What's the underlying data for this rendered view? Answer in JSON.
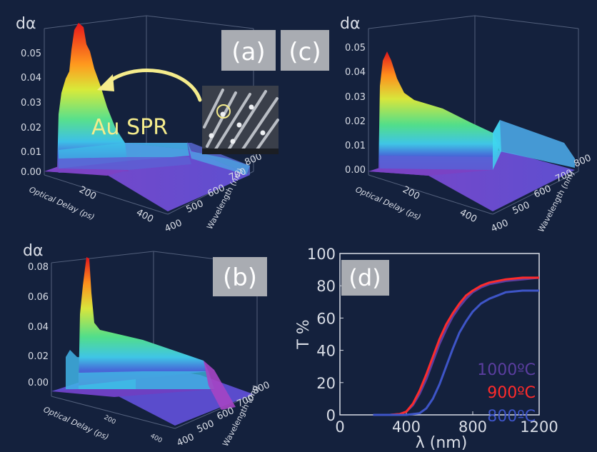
{
  "colors": {
    "background": "#14213d",
    "axis": "#d9dde6",
    "label_box": "#a9acb2",
    "callout": "#f5ec8c",
    "line_1000": "#5b3ea0",
    "line_900": "#ff2b2b",
    "line_800": "#3e55c8"
  },
  "panels": {
    "a": {
      "tag": "(a)",
      "z_label": "dα",
      "z_ticks": [
        "0.05",
        "0.04",
        "0.03",
        "0.02",
        "0.01",
        "0.00"
      ],
      "x_label": "Optical Delay (ps)",
      "x_ticks": [
        "200",
        "400"
      ],
      "y_label": "Wavelength (nm)",
      "y_ticks": [
        "400",
        "500",
        "600",
        "700",
        "800"
      ],
      "annotation": "Au SPR",
      "inset_icon": "sem-micrograph"
    },
    "c": {
      "tag": "(c)",
      "z_label": "dα",
      "z_ticks": [
        "0.05",
        "0.04",
        "0.03",
        "0.02",
        "0.01",
        "0.00"
      ],
      "x_label": "Optical Delay (ps)",
      "x_ticks": [
        "200",
        "400"
      ],
      "y_label": "Wavelength (nm)",
      "y_ticks": [
        "400",
        "500",
        "600",
        "700",
        "800"
      ]
    },
    "b": {
      "tag": "(b)",
      "z_label": "dα",
      "z_ticks": [
        "0.08",
        "0.06",
        "0.04",
        "0.02",
        "0.00"
      ],
      "x_label": "Optical Delay (ps)",
      "x_ticks": [
        "200",
        "400"
      ],
      "y_label": "Wavelength (nm)",
      "y_ticks": [
        "400",
        "500",
        "600",
        "700",
        "800"
      ]
    }
  },
  "chart_data": [
    {
      "panel": "d",
      "type": "line",
      "title": "(d)",
      "xlabel": "λ (nm)",
      "ylabel": "T %",
      "xlim": [
        0,
        1200
      ],
      "ylim": [
        0,
        100
      ],
      "x_ticks": [
        "0",
        "400",
        "800",
        "1200"
      ],
      "y_ticks": [
        "0",
        "20",
        "40",
        "60",
        "80",
        "100"
      ],
      "legend_position": "bottom-right inside",
      "series": [
        {
          "name": "1000ºC",
          "color": "#5b3ea0",
          "x": [
            200,
            300,
            360,
            400,
            440,
            480,
            520,
            560,
            600,
            640,
            680,
            720,
            760,
            800,
            850,
            900,
            1000,
            1100,
            1200
          ],
          "y": [
            0,
            0,
            0.5,
            2,
            6,
            13,
            22,
            33,
            44,
            53,
            61,
            67,
            72,
            76,
            79,
            81,
            83,
            84,
            85
          ]
        },
        {
          "name": "900ºC",
          "color": "#ff2b2b",
          "x": [
            200,
            300,
            360,
            400,
            440,
            480,
            520,
            560,
            600,
            640,
            680,
            720,
            760,
            800,
            850,
            900,
            1000,
            1100,
            1200
          ],
          "y": [
            0,
            0,
            0.5,
            2,
            7,
            15,
            25,
            36,
            47,
            56,
            63,
            69,
            74,
            77,
            80,
            82,
            84,
            85,
            85
          ]
        },
        {
          "name": "800ºC",
          "color": "#3e55c8",
          "x": [
            200,
            400,
            480,
            520,
            560,
            600,
            640,
            680,
            720,
            760,
            800,
            850,
            900,
            950,
            1000,
            1100,
            1200
          ],
          "y": [
            0,
            0,
            1,
            4,
            10,
            19,
            30,
            41,
            51,
            58,
            64,
            69,
            72,
            74,
            76,
            77,
            77
          ]
        }
      ]
    }
  ]
}
